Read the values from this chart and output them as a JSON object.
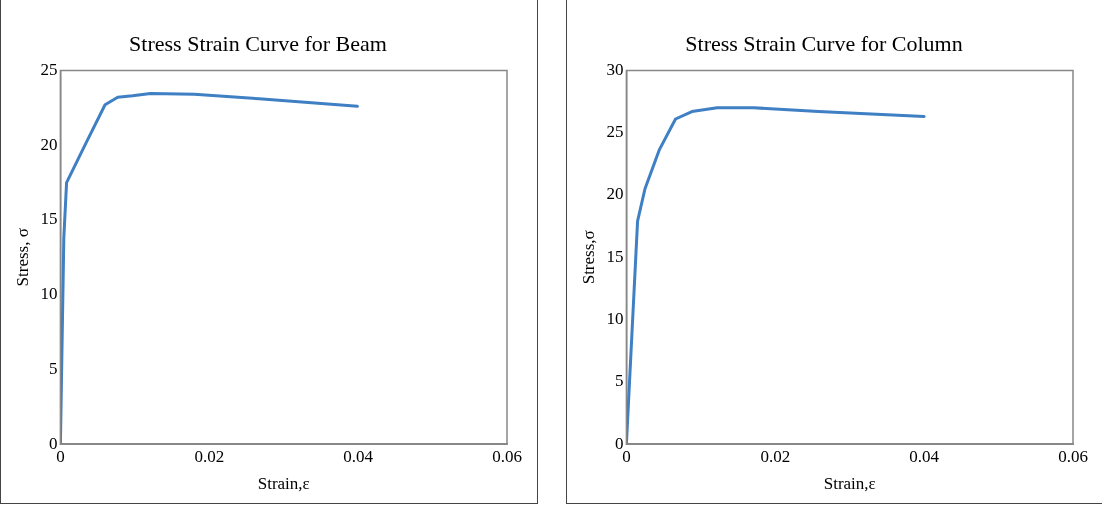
{
  "chart_data": [
    {
      "type": "line",
      "title": "Stress Strain Curve for Beam",
      "xlabel": "Strain,ε",
      "ylabel": "Stress, σ",
      "grid": false,
      "legend": false,
      "marker": "none",
      "series": [
        {
          "color": "#3f7fc4",
          "x": [
            0,
            0.00046,
            0.00083,
            0.0034,
            0.006,
            0.0077,
            0.0097,
            0.0121,
            0.018,
            0.0267,
            0.0399
          ],
          "values": [
            0,
            13.8,
            17.5,
            20.1,
            22.7,
            23.2,
            23.3,
            23.45,
            23.4,
            23.1,
            22.6
          ]
        }
      ],
      "xlim": [
        0,
        0.06
      ],
      "xticks": [
        0,
        0.02,
        0.04,
        0.06
      ],
      "ylim": [
        0,
        25
      ],
      "yticks": [
        0,
        5,
        10,
        15,
        20,
        25
      ]
    },
    {
      "type": "line",
      "title": "Stress Strain Curve for Column",
      "xlabel": "Strain,ε",
      "ylabel": "Stress,σ",
      "grid": false,
      "legend": false,
      "marker": "none",
      "series": [
        {
          "color": "#3f7fc4",
          "x": [
            0,
            0.0015,
            0.0025,
            0.0044,
            0.0066,
            0.0088,
            0.0122,
            0.0171,
            0.0258,
            0.04
          ],
          "values": [
            0,
            17.9,
            20.5,
            23.6,
            26.1,
            26.7,
            27.0,
            27.0,
            26.7,
            26.3
          ]
        }
      ],
      "xlim": [
        0,
        0.06
      ],
      "xticks": [
        0,
        0.02,
        0.04,
        0.06
      ],
      "ylim": [
        0,
        30
      ],
      "yticks": [
        0,
        5,
        10,
        15,
        20,
        25,
        30
      ]
    }
  ]
}
